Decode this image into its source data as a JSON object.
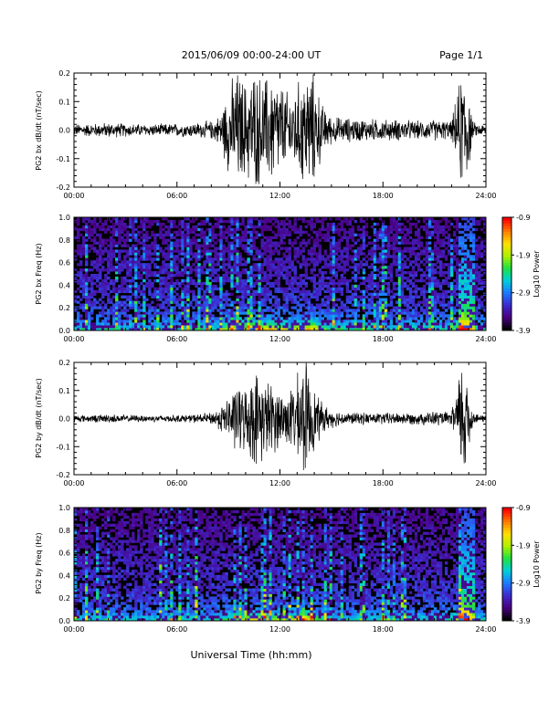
{
  "header": {
    "title": "2015/06/09  00:00-24:00 UT",
    "page": "Page 1/1"
  },
  "colors": {
    "trace": "#000000",
    "colormap": [
      "#000000",
      "#4b0082",
      "#3d2bcf",
      "#1c7cff",
      "#00d0d8",
      "#20e040",
      "#b0f000",
      "#ffe000",
      "#ff7a00",
      "#ff0000"
    ]
  },
  "chart_data": [
    {
      "type": "line",
      "name": "bx-waveform",
      "ylabel": "PG2 bx dB/dt (nT/sec)",
      "xlim": [
        0,
        24
      ],
      "ylim": [
        -0.2,
        0.2
      ],
      "xticks": [
        "00:00",
        "06:00",
        "12:00",
        "18:00",
        "24:00"
      ],
      "yticks": [
        "-0.2",
        "-0.1",
        "0.0",
        "0.1",
        "0.2"
      ],
      "activity_profile": {
        "hours": [
          0,
          1,
          2,
          3,
          4,
          5,
          6,
          7,
          8,
          8.5,
          9,
          9.5,
          10,
          10.5,
          11,
          11.5,
          12,
          12.5,
          13,
          13.5,
          14,
          14.5,
          15,
          16,
          17,
          18,
          19,
          20,
          21,
          22,
          22.6,
          22.9,
          23.2,
          23.5,
          24
        ],
        "amplitude": [
          0.02,
          0.022,
          0.025,
          0.022,
          0.02,
          0.02,
          0.022,
          0.024,
          0.03,
          0.05,
          0.14,
          0.2,
          0.16,
          0.2,
          0.17,
          0.19,
          0.16,
          0.12,
          0.15,
          0.2,
          0.18,
          0.08,
          0.045,
          0.04,
          0.038,
          0.035,
          0.035,
          0.03,
          0.035,
          0.03,
          0.2,
          0.2,
          0.03,
          0.02,
          0.02
        ]
      }
    },
    {
      "type": "heatmap",
      "name": "bx-spectrogram",
      "ylabel": "PG2 bx Freq (Hz)",
      "xlim": [
        0,
        24
      ],
      "ylim": [
        0,
        1.0
      ],
      "xticks": [
        "00:00",
        "06:00",
        "12:00",
        "18:00",
        "24:00"
      ],
      "yticks": [
        "0.0",
        "0.2",
        "0.4",
        "0.6",
        "0.8",
        "1.0"
      ],
      "colorbar": {
        "label": "Log10 Power",
        "range": [
          -3.9,
          -0.9
        ],
        "ticks": [
          "-0.9",
          "-1.9",
          "-2.9",
          "-3.9"
        ]
      }
    },
    {
      "type": "line",
      "name": "by-waveform",
      "ylabel": "PG2 by dB/dt (nT/sec)",
      "xlim": [
        0,
        24
      ],
      "ylim": [
        -0.2,
        0.2
      ],
      "xticks": [
        "00:00",
        "06:00",
        "12:00",
        "18:00",
        "24:00"
      ],
      "yticks": [
        "-0.2",
        "-0.1",
        "0.0",
        "0.1",
        "0.2"
      ],
      "activity_profile": {
        "hours": [
          0,
          1,
          2,
          3,
          4,
          5,
          6,
          7,
          8,
          8.5,
          9,
          9.5,
          10,
          10.5,
          11,
          11.5,
          12,
          12.5,
          13,
          13.5,
          14,
          14.5,
          15,
          16,
          17,
          18,
          19,
          20,
          21,
          22,
          22.6,
          22.9,
          23.2,
          23.5,
          24
        ],
        "amplitude": [
          0.012,
          0.012,
          0.015,
          0.012,
          0.012,
          0.012,
          0.012,
          0.014,
          0.02,
          0.04,
          0.07,
          0.12,
          0.1,
          0.16,
          0.14,
          0.12,
          0.1,
          0.09,
          0.14,
          0.2,
          0.1,
          0.05,
          0.03,
          0.02,
          0.02,
          0.02,
          0.02,
          0.02,
          0.025,
          0.02,
          0.2,
          0.2,
          0.03,
          0.015,
          0.012
        ]
      }
    },
    {
      "type": "heatmap",
      "name": "by-spectrogram",
      "ylabel": "PG2 by Freq (Hz)",
      "xlim": [
        0,
        24
      ],
      "ylim": [
        0,
        1.0
      ],
      "xticks": [
        "00:00",
        "06:00",
        "12:00",
        "18:00",
        "24:00"
      ],
      "yticks": [
        "0.0",
        "0.2",
        "0.4",
        "0.6",
        "0.8",
        "1.0"
      ],
      "colorbar": {
        "label": "Log10 Power",
        "range": [
          -3.9,
          -0.9
        ],
        "ticks": [
          "-0.9",
          "-1.9",
          "-2.9",
          "-3.9"
        ]
      }
    }
  ],
  "xlabel": "Universal Time (hh:mm)"
}
